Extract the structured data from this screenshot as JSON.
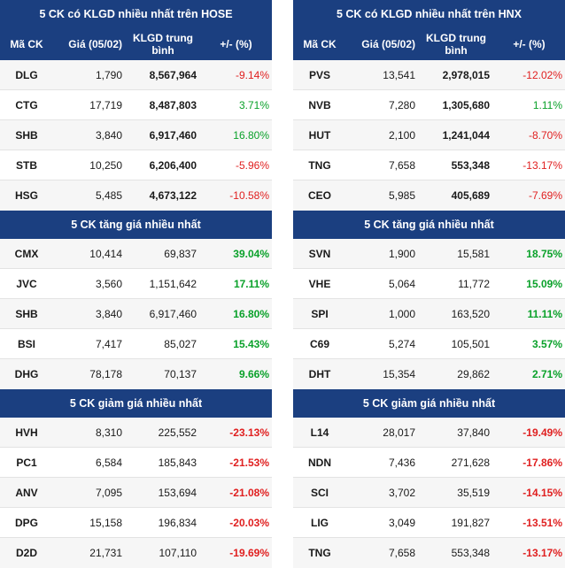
{
  "left": {
    "vol_title": "5 CK có KLGD nhiều nhất trên HOSE",
    "headers": {
      "code": "Mã CK",
      "price": "Giá (05/02)",
      "vol_line1": "KLGD trung",
      "vol_line2": "bình",
      "pct": "+/- (%)"
    },
    "vol_rows": [
      {
        "code": "DLG",
        "price": "1,790",
        "vol": "8,567,964",
        "pct": "-9.14%"
      },
      {
        "code": "CTG",
        "price": "17,719",
        "vol": "8,487,803",
        "pct": "3.71%"
      },
      {
        "code": "SHB",
        "price": "3,840",
        "vol": "6,917,460",
        "pct": "16.80%"
      },
      {
        "code": "STB",
        "price": "10,250",
        "vol": "6,206,400",
        "pct": "-5.96%"
      },
      {
        "code": "HSG",
        "price": "5,485",
        "vol": "4,673,122",
        "pct": "-10.58%"
      }
    ],
    "up_title": "5 CK tăng giá nhiều nhất",
    "up_rows": [
      {
        "code": "CMX",
        "price": "10,414",
        "vol": "69,837",
        "pct": "39.04%"
      },
      {
        "code": "JVC",
        "price": "3,560",
        "vol": "1,151,642",
        "pct": "17.11%"
      },
      {
        "code": "SHB",
        "price": "3,840",
        "vol": "6,917,460",
        "pct": "16.80%"
      },
      {
        "code": "BSI",
        "price": "7,417",
        "vol": "85,027",
        "pct": "15.43%"
      },
      {
        "code": "DHG",
        "price": "78,178",
        "vol": "70,137",
        "pct": "9.66%"
      }
    ],
    "down_title": "5 CK giảm giá nhiều nhất",
    "down_rows": [
      {
        "code": "HVH",
        "price": "8,310",
        "vol": "225,552",
        "pct": "-23.13%"
      },
      {
        "code": "PC1",
        "price": "6,584",
        "vol": "185,843",
        "pct": "-21.53%"
      },
      {
        "code": "ANV",
        "price": "7,095",
        "vol": "153,694",
        "pct": "-21.08%"
      },
      {
        "code": "DPG",
        "price": "15,158",
        "vol": "196,834",
        "pct": "-20.03%"
      },
      {
        "code": "D2D",
        "price": "21,731",
        "vol": "107,110",
        "pct": "-19.69%"
      }
    ]
  },
  "right": {
    "vol_title": "5 CK có KLGD nhiều nhất trên HNX",
    "headers": {
      "code": "Mã CK",
      "price": "Giá (05/02)",
      "vol_line1": "KLGD trung",
      "vol_line2": "bình",
      "pct": "+/- (%)"
    },
    "vol_rows": [
      {
        "code": "PVS",
        "price": "13,541",
        "vol": "2,978,015",
        "pct": "-12.02%"
      },
      {
        "code": "NVB",
        "price": "7,280",
        "vol": "1,305,680",
        "pct": "1.11%"
      },
      {
        "code": "HUT",
        "price": "2,100",
        "vol": "1,241,044",
        "pct": "-8.70%"
      },
      {
        "code": "TNG",
        "price": "7,658",
        "vol": "553,348",
        "pct": "-13.17%"
      },
      {
        "code": "CEO",
        "price": "5,985",
        "vol": "405,689",
        "pct": "-7.69%"
      }
    ],
    "up_title": "5 CK tăng giá nhiều nhất",
    "up_rows": [
      {
        "code": "SVN",
        "price": "1,900",
        "vol": "15,581",
        "pct": "18.75%"
      },
      {
        "code": "VHE",
        "price": "5,064",
        "vol": "11,772",
        "pct": "15.09%"
      },
      {
        "code": "SPI",
        "price": "1,000",
        "vol": "163,520",
        "pct": "11.11%"
      },
      {
        "code": "C69",
        "price": "5,274",
        "vol": "105,501",
        "pct": "3.57%"
      },
      {
        "code": "DHT",
        "price": "15,354",
        "vol": "29,862",
        "pct": "2.71%"
      }
    ],
    "down_title": "5 CK giảm giá nhiều nhất",
    "down_rows": [
      {
        "code": "L14",
        "price": "28,017",
        "vol": "37,840",
        "pct": "-19.49%"
      },
      {
        "code": "NDN",
        "price": "7,436",
        "vol": "271,628",
        "pct": "-17.86%"
      },
      {
        "code": "SCI",
        "price": "3,702",
        "vol": "35,519",
        "pct": "-14.15%"
      },
      {
        "code": "LIG",
        "price": "3,049",
        "vol": "191,827",
        "pct": "-13.51%"
      },
      {
        "code": "TNG",
        "price": "7,658",
        "vol": "553,348",
        "pct": "-13.17%"
      }
    ]
  },
  "colors": {
    "header_bg": "#1b3f80",
    "up": "#0aa12a",
    "down": "#e02020"
  }
}
